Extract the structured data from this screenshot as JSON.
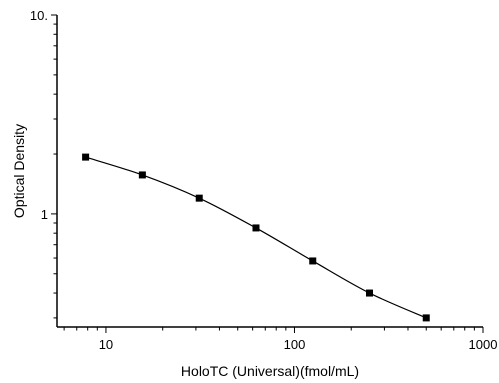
{
  "chart_data": {
    "type": "scatter",
    "title": "",
    "xlabel": "HoloTC (Universal)(fmol/mL)",
    "ylabel": "Optical Density",
    "x_scale": "log",
    "y_scale": "log",
    "xlim": [
      5.5,
      1000
    ],
    "ylim": [
      0.27,
      10
    ],
    "x_ticks": [
      10,
      100,
      1000
    ],
    "x_tick_labels": [
      "10",
      "100",
      "1000"
    ],
    "y_ticks": [
      1,
      10
    ],
    "y_tick_labels": [
      "1",
      "10."
    ],
    "grid": false,
    "legend": "none",
    "series": [
      {
        "x": [
          7.8,
          15.6,
          31.25,
          62.5,
          125,
          250,
          500
        ],
        "y": [
          1.93,
          1.57,
          1.2,
          0.85,
          0.58,
          0.4,
          0.3
        ],
        "marker": "square",
        "fit_curve": true
      }
    ],
    "colors": {
      "marker": "#000000",
      "line": "#000000",
      "axis": "#000000"
    }
  }
}
